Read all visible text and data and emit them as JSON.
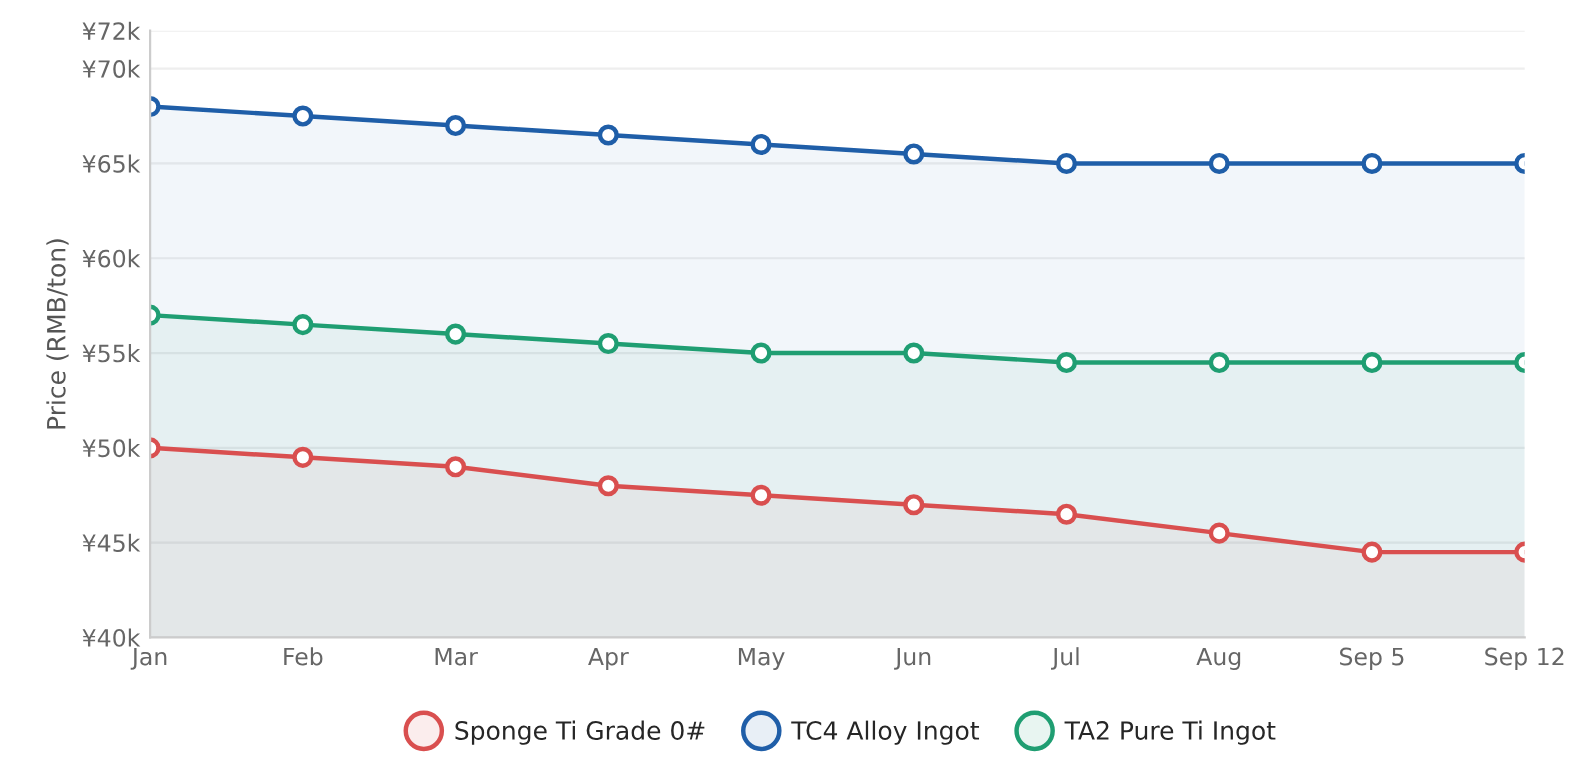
{
  "chart_data": {
    "type": "area",
    "ylabel": "Price (RMB/ton)",
    "categories": [
      "Jan",
      "Feb",
      "Mar",
      "Apr",
      "May",
      "Jun",
      "Jul",
      "Aug",
      "Sep 5",
      "Sep 12"
    ],
    "series": [
      {
        "name": "Sponge Ti Grade 0#",
        "color": "#d94f4f",
        "values": [
          50000,
          49500,
          49000,
          48000,
          47500,
          47000,
          46500,
          45500,
          44500,
          44500
        ]
      },
      {
        "name": "TC4 Alloy Ingot",
        "color": "#1f5ea8",
        "values": [
          68000,
          67500,
          67000,
          66500,
          66000,
          65500,
          65000,
          65000,
          65000,
          65000
        ]
      },
      {
        "name": "TA2 Pure Ti Ingot",
        "color": "#1f9e72",
        "values": [
          57000,
          56500,
          56000,
          55500,
          55000,
          55000,
          54500,
          54500,
          54500,
          54500
        ]
      }
    ],
    "ylim": [
      40000,
      72000
    ],
    "yticks": [
      {
        "value": 40000,
        "label": "¥40k"
      },
      {
        "value": 45000,
        "label": "¥45k"
      },
      {
        "value": 50000,
        "label": "¥50k"
      },
      {
        "value": 55000,
        "label": "¥55k"
      },
      {
        "value": 60000,
        "label": "¥60k"
      },
      {
        "value": 65000,
        "label": "¥65k"
      },
      {
        "value": 70000,
        "label": "¥70k"
      },
      {
        "value": 72000,
        "label": "¥72k"
      }
    ],
    "grid": "y",
    "legend": "bottom",
    "marker": "circle",
    "line_style": "solid"
  }
}
